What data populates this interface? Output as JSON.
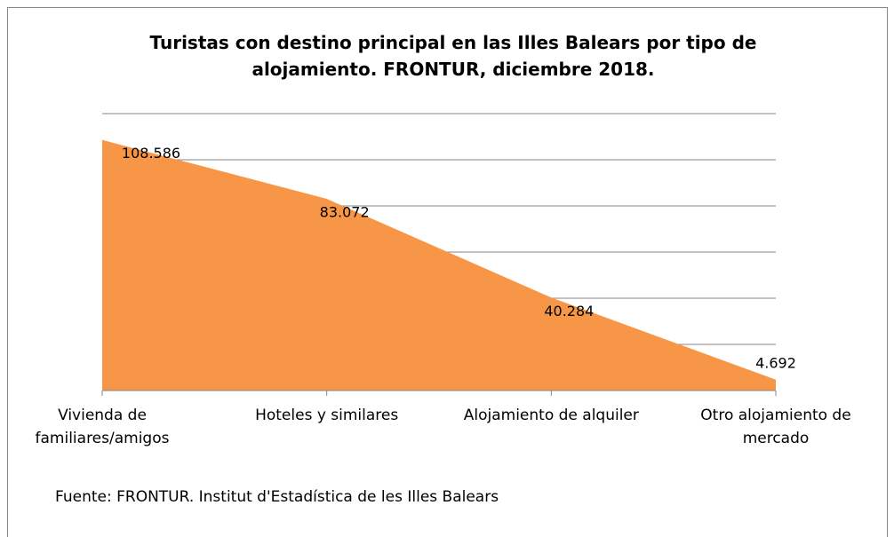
{
  "chart_data": {
    "type": "area",
    "title": "Turistas con destino principal en las Illes Balears por tipo de alojamiento. FRONTUR, diciembre 2018.",
    "categories": [
      "Vivienda de familiares/amigos",
      "Hoteles y similares",
      "Alojamiento de alquiler",
      "Otro alojamiento de mercado"
    ],
    "values": [
      108586,
      83072,
      40284,
      4692
    ],
    "value_labels": [
      "108.586",
      "83.072",
      "40.284",
      "4.692"
    ],
    "color": "#f79646",
    "ylim": [
      0,
      120000
    ],
    "yticks": [
      0,
      20000,
      40000,
      60000,
      80000,
      100000,
      120000
    ],
    "grid": true,
    "source": "Fuente: FRONTUR. Institut d'Estadística de les Illes Balears"
  }
}
